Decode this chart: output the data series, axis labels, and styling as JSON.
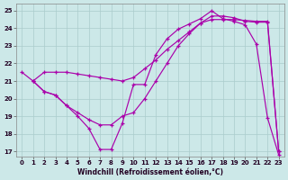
{
  "xlabel": "Windchill (Refroidissement éolien,°C)",
  "bg_color": "#cce8e8",
  "line_color": "#aa00aa",
  "grid_color": "#aacccc",
  "xlim": [
    -0.5,
    23.5
  ],
  "ylim": [
    16.7,
    25.4
  ],
  "yticks": [
    17,
    18,
    19,
    20,
    21,
    22,
    23,
    24,
    25
  ],
  "xticks": [
    0,
    1,
    2,
    3,
    4,
    5,
    6,
    7,
    8,
    9,
    10,
    11,
    12,
    13,
    14,
    15,
    16,
    17,
    18,
    19,
    20,
    21,
    22,
    23
  ],
  "curve1_x": [
    0,
    1,
    2,
    3,
    4,
    5,
    6,
    7,
    8,
    9,
    10,
    11,
    12,
    13,
    14,
    15,
    16,
    17,
    18,
    19,
    20,
    21,
    22,
    23
  ],
  "curve1_y": [
    21.5,
    21.0,
    20.4,
    20.2,
    19.6,
    19.0,
    18.3,
    17.1,
    17.1,
    18.6,
    20.8,
    20.8,
    22.5,
    23.4,
    23.95,
    24.25,
    24.55,
    25.0,
    24.55,
    24.4,
    24.2,
    23.1,
    18.9,
    16.8
  ],
  "curve2_x": [
    1,
    2,
    3,
    4,
    5,
    6,
    7,
    8,
    9,
    10,
    11,
    12,
    13,
    14,
    15,
    16,
    17,
    18,
    19,
    20,
    21,
    22,
    23
  ],
  "curve2_y": [
    21.0,
    21.5,
    21.5,
    21.5,
    21.4,
    21.3,
    21.2,
    21.1,
    21.0,
    21.2,
    21.7,
    22.2,
    22.8,
    23.3,
    23.8,
    24.3,
    24.5,
    24.5,
    24.5,
    24.45,
    24.4,
    24.4,
    17.0
  ],
  "curve3_x": [
    1,
    2,
    3,
    4,
    5,
    6,
    7,
    8,
    9,
    10,
    11,
    12,
    13,
    14,
    15,
    16,
    17,
    18,
    19,
    20,
    21,
    22,
    23
  ],
  "curve3_y": [
    21.0,
    20.4,
    20.2,
    19.6,
    19.2,
    18.8,
    18.5,
    18.5,
    19.0,
    19.2,
    20.0,
    21.0,
    22.0,
    23.0,
    23.7,
    24.3,
    24.7,
    24.7,
    24.6,
    24.4,
    24.35,
    24.35,
    17.0
  ]
}
